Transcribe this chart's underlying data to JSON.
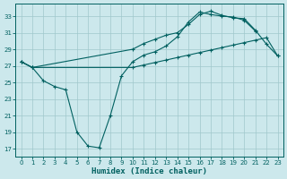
{
  "xlabel": "Humidex (Indice chaleur)",
  "background_color": "#cce8ec",
  "grid_color": "#a0c8cc",
  "line_color": "#006060",
  "xlim": [
    -0.5,
    23.5
  ],
  "ylim": [
    16.0,
    34.5
  ],
  "yticks": [
    17,
    19,
    21,
    23,
    25,
    27,
    29,
    31,
    33
  ],
  "xticks": [
    0,
    1,
    2,
    3,
    4,
    5,
    6,
    7,
    8,
    9,
    10,
    11,
    12,
    13,
    14,
    15,
    16,
    17,
    18,
    19,
    20,
    21,
    22,
    23
  ],
  "series1_x": [
    0,
    1,
    2,
    3,
    4,
    5,
    6,
    7,
    8,
    9,
    10,
    11,
    12,
    13,
    14,
    15,
    16,
    17,
    18,
    19,
    20,
    21
  ],
  "series1_y": [
    27.5,
    26.8,
    25.2,
    24.5,
    24.1,
    19.0,
    17.3,
    17.1,
    21.0,
    25.8,
    27.5,
    28.3,
    28.7,
    29.4,
    30.5,
    32.3,
    33.5,
    33.2,
    33.0,
    32.9,
    32.5,
    31.2
  ],
  "series2_x": [
    0,
    1,
    10,
    11,
    12,
    13,
    14,
    15,
    16,
    17,
    18,
    19,
    20,
    21,
    22,
    23
  ],
  "series2_y": [
    27.5,
    26.8,
    29.0,
    29.7,
    30.2,
    30.7,
    31.0,
    32.0,
    33.2,
    33.6,
    33.1,
    32.8,
    32.7,
    31.3,
    29.6,
    28.2
  ],
  "series3_x": [
    0,
    1,
    10,
    11,
    12,
    13,
    14,
    15,
    16,
    17,
    18,
    19,
    20,
    21,
    22,
    23
  ],
  "series3_y": [
    27.5,
    26.8,
    26.8,
    27.1,
    27.4,
    27.7,
    28.0,
    28.3,
    28.6,
    28.9,
    29.2,
    29.5,
    29.8,
    30.1,
    30.4,
    28.2
  ]
}
